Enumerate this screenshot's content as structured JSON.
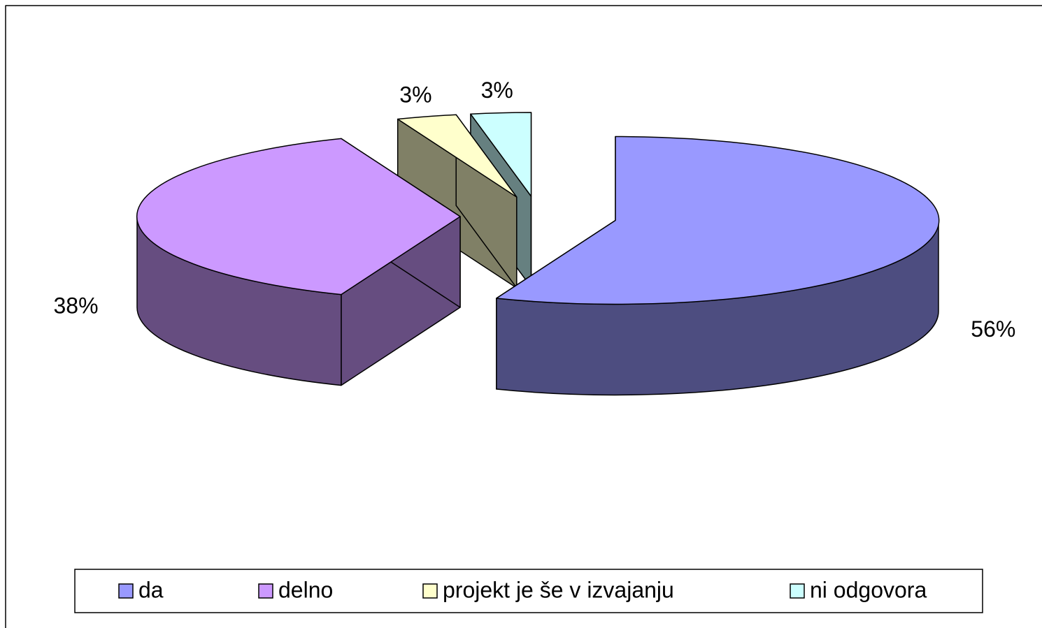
{
  "chart_data": {
    "type": "pie3d",
    "categories": [
      "da",
      "delno",
      "projekt je še v izvajanju",
      "ni odgovora"
    ],
    "values": [
      56,
      38,
      3,
      3
    ],
    "value_labels": [
      "56%",
      "38%",
      "3%",
      "3%"
    ],
    "colors": [
      "#9999ff",
      "#cc99ff",
      "#ffffcc",
      "#ccffff"
    ],
    "legend": "bottom"
  }
}
